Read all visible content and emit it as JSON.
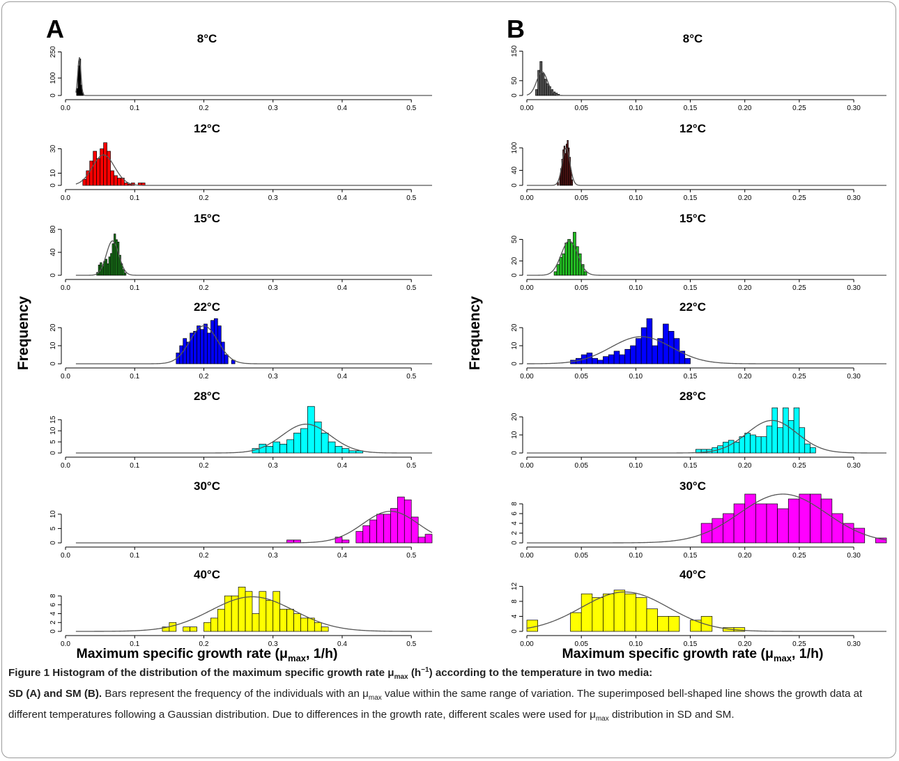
{
  "panels": [
    {
      "letter": "A",
      "ylabel": "Frequency",
      "xlabel_main": "Maximum specific growth rate (μ",
      "xlabel_sub": "max",
      "xlabel_tail": ", 1/h)",
      "xlim": [
        0,
        0.53
      ],
      "xticks": [
        "0.0",
        "0.1",
        "0.2",
        "0.3",
        "0.4",
        "0.5"
      ],
      "xtick_values": [
        0,
        0.1,
        0.2,
        0.3,
        0.4,
        0.5
      ],
      "curve_start": 0.015,
      "binwidth": 0.01
    },
    {
      "letter": "B",
      "ylabel": "Frequency",
      "xlabel_main": "Maximum specific growth rate (μ",
      "xlabel_sub": "max",
      "xlabel_tail": ", 1/h)",
      "xlim": [
        0,
        0.33
      ],
      "xticks": [
        "0.00",
        "0.05",
        "0.10",
        "0.15",
        "0.20",
        "0.25",
        "0.30"
      ],
      "xtick_values": [
        0,
        0.05,
        0.1,
        0.15,
        0.2,
        0.25,
        0.3
      ],
      "curve_start": 0.0,
      "binwidth": 0.005
    }
  ],
  "chart_data": [
    {
      "panel": "A",
      "type": "bar",
      "title": "8°C",
      "color": "#000000",
      "ylim": [
        0,
        280
      ],
      "yticks": [
        0,
        100,
        250
      ],
      "ytick_labels": [
        "0",
        "100",
        "250"
      ],
      "binwidth": 0.002,
      "bins": [
        [
          0.016,
          40
        ],
        [
          0.018,
          170
        ],
        [
          0.02,
          210
        ],
        [
          0.022,
          60
        ],
        [
          0.024,
          15
        ]
      ],
      "curve": {
        "mean": 0.02,
        "sd": 0.0022,
        "peak": 220
      }
    },
    {
      "panel": "A",
      "type": "bar",
      "title": "12°C",
      "color": "#ff0000",
      "ylim": [
        0,
        40
      ],
      "yticks": [
        0,
        10,
        30
      ],
      "ytick_labels": [
        "0",
        "10",
        "30"
      ],
      "binwidth": 0.005,
      "bins": [
        [
          0.025,
          5
        ],
        [
          0.03,
          12
        ],
        [
          0.035,
          20
        ],
        [
          0.04,
          28
        ],
        [
          0.045,
          22
        ],
        [
          0.05,
          30
        ],
        [
          0.055,
          35
        ],
        [
          0.06,
          28
        ],
        [
          0.065,
          12
        ],
        [
          0.07,
          8
        ],
        [
          0.075,
          6
        ],
        [
          0.08,
          6
        ],
        [
          0.085,
          2
        ],
        [
          0.09,
          1
        ],
        [
          0.095,
          2
        ],
        [
          0.105,
          2
        ],
        [
          0.11,
          2
        ]
      ],
      "curve": {
        "mean": 0.055,
        "sd": 0.016,
        "peak": 25
      }
    },
    {
      "panel": "A",
      "type": "bar",
      "title": "15°C",
      "color": "#1a7a1a",
      "ylim": [
        0,
        85
      ],
      "yticks": [
        0,
        40,
        80
      ],
      "ytick_labels": [
        "0",
        "40",
        "80"
      ],
      "binwidth": 0.0025,
      "bins": [
        [
          0.045,
          5
        ],
        [
          0.0475,
          18
        ],
        [
          0.05,
          22
        ],
        [
          0.0525,
          15
        ],
        [
          0.055,
          24
        ],
        [
          0.0575,
          28
        ],
        [
          0.06,
          20
        ],
        [
          0.0625,
          32
        ],
        [
          0.065,
          38
        ],
        [
          0.0675,
          55
        ],
        [
          0.07,
          72
        ],
        [
          0.0725,
          62
        ],
        [
          0.075,
          58
        ],
        [
          0.0775,
          35
        ],
        [
          0.08,
          20
        ],
        [
          0.0825,
          10
        ],
        [
          0.085,
          4
        ]
      ],
      "curve": {
        "mean": 0.068,
        "sd": 0.009,
        "peak": 60
      }
    },
    {
      "panel": "A",
      "type": "bar",
      "title": "22°C",
      "color": "#0000ff",
      "ylim": [
        0,
        27
      ],
      "yticks": [
        0,
        10,
        20
      ],
      "ytick_labels": [
        "0",
        "10",
        "20"
      ],
      "binwidth": 0.005,
      "bins": [
        [
          0.16,
          6
        ],
        [
          0.165,
          10
        ],
        [
          0.17,
          14
        ],
        [
          0.175,
          12
        ],
        [
          0.18,
          17
        ],
        [
          0.185,
          18
        ],
        [
          0.19,
          21
        ],
        [
          0.195,
          19
        ],
        [
          0.2,
          22
        ],
        [
          0.205,
          17
        ],
        [
          0.21,
          24
        ],
        [
          0.215,
          25
        ],
        [
          0.22,
          21
        ],
        [
          0.225,
          12
        ],
        [
          0.23,
          5
        ],
        [
          0.24,
          2
        ]
      ],
      "curve": {
        "mean": 0.2,
        "sd": 0.02,
        "peak": 21
      }
    },
    {
      "panel": "A",
      "type": "bar",
      "title": "28°C",
      "color": "#00ffff",
      "ylim": [
        0,
        22
      ],
      "yticks": [
        0,
        5,
        10,
        15
      ],
      "ytick_labels": [
        "0",
        "5",
        "10",
        "15"
      ],
      "binwidth": 0.01,
      "bins": [
        [
          0.27,
          2
        ],
        [
          0.28,
          4
        ],
        [
          0.29,
          3
        ],
        [
          0.3,
          5
        ],
        [
          0.31,
          4
        ],
        [
          0.32,
          6
        ],
        [
          0.33,
          9
        ],
        [
          0.34,
          11
        ],
        [
          0.35,
          21
        ],
        [
          0.36,
          14
        ],
        [
          0.37,
          9
        ],
        [
          0.38,
          5
        ],
        [
          0.39,
          3
        ],
        [
          0.4,
          2
        ],
        [
          0.41,
          1
        ],
        [
          0.42,
          1
        ]
      ],
      "curve": {
        "mean": 0.348,
        "sd": 0.035,
        "peak": 13
      }
    },
    {
      "panel": "A",
      "type": "bar",
      "title": "30°C",
      "color": "#ff00ff",
      "ylim": [
        0,
        17
      ],
      "yticks": [
        0,
        5,
        10
      ],
      "ytick_labels": [
        "0",
        "5",
        "10"
      ],
      "binwidth": 0.01,
      "bins": [
        [
          0.32,
          1
        ],
        [
          0.33,
          1
        ],
        [
          0.39,
          2
        ],
        [
          0.4,
          1
        ],
        [
          0.42,
          4
        ],
        [
          0.43,
          6
        ],
        [
          0.44,
          8
        ],
        [
          0.45,
          10
        ],
        [
          0.46,
          10
        ],
        [
          0.47,
          12
        ],
        [
          0.48,
          16
        ],
        [
          0.49,
          15
        ],
        [
          0.5,
          9
        ],
        [
          0.51,
          2
        ],
        [
          0.52,
          3
        ]
      ],
      "curve": {
        "mean": 0.47,
        "sd": 0.04,
        "peak": 11
      }
    },
    {
      "panel": "A",
      "type": "bar",
      "title": "40°C",
      "color": "#ffff00",
      "ylim": [
        0,
        11
      ],
      "yticks": [
        0,
        2,
        4,
        6,
        8
      ],
      "ytick_labels": [
        "0",
        "2",
        "4",
        "6",
        "8"
      ],
      "binwidth": 0.01,
      "bins": [
        [
          0.14,
          1
        ],
        [
          0.15,
          2
        ],
        [
          0.17,
          1
        ],
        [
          0.18,
          1
        ],
        [
          0.2,
          2
        ],
        [
          0.21,
          3
        ],
        [
          0.22,
          5
        ],
        [
          0.23,
          8
        ],
        [
          0.24,
          8
        ],
        [
          0.25,
          10
        ],
        [
          0.26,
          9
        ],
        [
          0.27,
          4
        ],
        [
          0.28,
          9
        ],
        [
          0.29,
          7
        ],
        [
          0.3,
          9
        ],
        [
          0.31,
          5
        ],
        [
          0.32,
          5
        ],
        [
          0.33,
          4
        ],
        [
          0.34,
          3
        ],
        [
          0.35,
          3
        ],
        [
          0.36,
          2
        ],
        [
          0.37,
          1
        ]
      ],
      "curve": {
        "mean": 0.27,
        "sd": 0.06,
        "peak": 7.8
      }
    },
    {
      "panel": "B",
      "type": "bar",
      "title": "8°C",
      "color": "#555555",
      "ylim": [
        0,
        165
      ],
      "yticks": [
        0,
        50,
        150
      ],
      "ytick_labels": [
        "0",
        "50",
        "150"
      ],
      "binwidth": 0.002,
      "bins": [
        [
          0.008,
          20
        ],
        [
          0.01,
          85
        ],
        [
          0.012,
          115
        ],
        [
          0.014,
          75
        ],
        [
          0.016,
          55
        ],
        [
          0.018,
          40
        ],
        [
          0.02,
          30
        ],
        [
          0.022,
          20
        ],
        [
          0.024,
          12
        ],
        [
          0.026,
          8
        ],
        [
          0.028,
          4
        ]
      ],
      "curve": {
        "mean": 0.014,
        "sd": 0.005,
        "peak": 80
      }
    },
    {
      "panel": "B",
      "type": "bar",
      "title": "12°C",
      "color": "#6b1a1a",
      "ylim": [
        0,
        130
      ],
      "yticks": [
        0,
        40,
        100
      ],
      "ytick_labels": [
        "0",
        "40",
        "100"
      ],
      "binwidth": 0.001,
      "bins": [
        [
          0.028,
          8
        ],
        [
          0.03,
          25
        ],
        [
          0.031,
          45
        ],
        [
          0.032,
          70
        ],
        [
          0.033,
          95
        ],
        [
          0.034,
          105
        ],
        [
          0.035,
          85
        ],
        [
          0.036,
          110
        ],
        [
          0.037,
          120
        ],
        [
          0.038,
          100
        ],
        [
          0.039,
          75
        ],
        [
          0.04,
          40
        ],
        [
          0.041,
          15
        ]
      ],
      "curve": {
        "mean": 0.036,
        "sd": 0.0035,
        "peak": 100
      }
    },
    {
      "panel": "B",
      "type": "bar",
      "title": "15°C",
      "color": "#22bb22",
      "ylim": [
        0,
        68
      ],
      "yticks": [
        0,
        20,
        50
      ],
      "ytick_labels": [
        "0",
        "20",
        "50"
      ],
      "binwidth": 0.0025,
      "bins": [
        [
          0.025,
          5
        ],
        [
          0.0275,
          15
        ],
        [
          0.03,
          25
        ],
        [
          0.0325,
          30
        ],
        [
          0.035,
          45
        ],
        [
          0.0375,
          50
        ],
        [
          0.04,
          45
        ],
        [
          0.0425,
          60
        ],
        [
          0.045,
          40
        ],
        [
          0.0475,
          30
        ],
        [
          0.05,
          15
        ],
        [
          0.0525,
          5
        ]
      ],
      "curve": {
        "mean": 0.039,
        "sd": 0.0075,
        "peak": 48
      }
    },
    {
      "panel": "B",
      "type": "bar",
      "title": "22°C",
      "color": "#0000ff",
      "ylim": [
        0,
        27
      ],
      "yticks": [
        0,
        10,
        20
      ],
      "ytick_labels": [
        "0",
        "10",
        "20"
      ],
      "binwidth": 0.005,
      "bins": [
        [
          0.04,
          2
        ],
        [
          0.045,
          3
        ],
        [
          0.05,
          5
        ],
        [
          0.055,
          6
        ],
        [
          0.06,
          3
        ],
        [
          0.065,
          2
        ],
        [
          0.07,
          4
        ],
        [
          0.075,
          5
        ],
        [
          0.08,
          7
        ],
        [
          0.085,
          5
        ],
        [
          0.09,
          8
        ],
        [
          0.095,
          10
        ],
        [
          0.1,
          14
        ],
        [
          0.105,
          20
        ],
        [
          0.11,
          25
        ],
        [
          0.115,
          10
        ],
        [
          0.12,
          14
        ],
        [
          0.125,
          22
        ],
        [
          0.13,
          18
        ],
        [
          0.135,
          14
        ],
        [
          0.14,
          7
        ],
        [
          0.145,
          3
        ]
      ],
      "curve": {
        "mean": 0.105,
        "sd": 0.028,
        "peak": 15
      }
    },
    {
      "panel": "B",
      "type": "bar",
      "title": "28°C",
      "color": "#00ffff",
      "ylim": [
        0,
        27
      ],
      "yticks": [
        0,
        10,
        20
      ],
      "ytick_labels": [
        "0",
        "10",
        "20"
      ],
      "binwidth": 0.005,
      "bins": [
        [
          0.155,
          2
        ],
        [
          0.16,
          2
        ],
        [
          0.165,
          2
        ],
        [
          0.17,
          3
        ],
        [
          0.175,
          4
        ],
        [
          0.18,
          6
        ],
        [
          0.185,
          7
        ],
        [
          0.19,
          6
        ],
        [
          0.195,
          9
        ],
        [
          0.2,
          11
        ],
        [
          0.205,
          10
        ],
        [
          0.21,
          9
        ],
        [
          0.215,
          9
        ],
        [
          0.22,
          15
        ],
        [
          0.225,
          25
        ],
        [
          0.23,
          14
        ],
        [
          0.235,
          25
        ],
        [
          0.24,
          18
        ],
        [
          0.245,
          25
        ],
        [
          0.25,
          14
        ],
        [
          0.255,
          5
        ],
        [
          0.26,
          3
        ]
      ],
      "curve": {
        "mean": 0.225,
        "sd": 0.023,
        "peak": 18
      }
    },
    {
      "panel": "B",
      "type": "bar",
      "title": "30°C",
      "color": "#ff00ff",
      "ylim": [
        0,
        10
      ],
      "yticks": [
        0,
        2,
        4,
        6,
        8
      ],
      "ytick_labels": [
        "0",
        "2",
        "4",
        "6",
        "8"
      ],
      "binwidth": 0.01,
      "bins": [
        [
          0.16,
          4
        ],
        [
          0.17,
          5
        ],
        [
          0.18,
          6
        ],
        [
          0.19,
          8
        ],
        [
          0.2,
          10
        ],
        [
          0.21,
          8
        ],
        [
          0.22,
          8
        ],
        [
          0.23,
          7
        ],
        [
          0.24,
          9
        ],
        [
          0.25,
          10
        ],
        [
          0.26,
          10
        ],
        [
          0.27,
          9
        ],
        [
          0.28,
          6
        ],
        [
          0.29,
          4
        ],
        [
          0.3,
          3
        ],
        [
          0.32,
          1
        ]
      ],
      "curve": {
        "mean": 0.235,
        "sd": 0.04,
        "peak": 10
      }
    },
    {
      "panel": "B",
      "type": "bar",
      "title": "40°C",
      "color": "#ffff00",
      "ylim": [
        0,
        13
      ],
      "yticks": [
        0,
        4,
        8,
        12
      ],
      "ytick_labels": [
        "0",
        "4",
        "8",
        "12"
      ],
      "binwidth": 0.01,
      "bins": [
        [
          0.0,
          3
        ],
        [
          0.04,
          5
        ],
        [
          0.05,
          10
        ],
        [
          0.06,
          9
        ],
        [
          0.07,
          10
        ],
        [
          0.08,
          11
        ],
        [
          0.09,
          10
        ],
        [
          0.1,
          9
        ],
        [
          0.11,
          6
        ],
        [
          0.12,
          4
        ],
        [
          0.13,
          4
        ],
        [
          0.15,
          3
        ],
        [
          0.16,
          4
        ],
        [
          0.18,
          1
        ],
        [
          0.19,
          1
        ]
      ],
      "curve": {
        "mean": 0.09,
        "sd": 0.04,
        "peak": 10.5
      }
    }
  ],
  "caption": {
    "lead_1": "Figure 1 Histogram of the distribution of the maximum specific growth rate μ",
    "lead_sub": "max",
    "lead_2": " (h",
    "lead_sup": "−1",
    "lead_3": ") according to the temperature in two media:",
    "lead_4": "SD (A) and SM (B).",
    "body_1": " Bars represent the frequency of the individuals with an μ",
    "body_sub": "max",
    "body_2": " value within the same range of variation. The superimposed bell-shaped line shows the growth data at different temperatures following a Gaussian distribution. Due to differences in the growth rate, different scales were used for μ",
    "body_sub2": "max",
    "body_3": " distribution in SD and SM."
  }
}
